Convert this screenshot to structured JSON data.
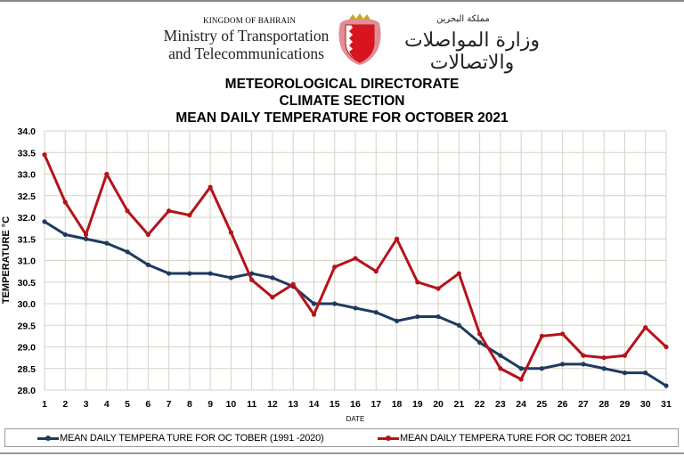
{
  "header": {
    "kingdom": "KINGDOM OF BAHRAIN",
    "ministry_line1": "Ministry of Transportation",
    "ministry_line2": "and Telecommunications",
    "arabic_kingdom": "مملكة البحرين",
    "arabic_ministry": "وزارة المواصلات والاتصالات",
    "emblem_icon": "bahrain-coat-of-arms"
  },
  "titles": [
    "METEOROLOGICAL DIRECTORATE",
    "CLIMATE SECTION",
    "MEAN DAILY TEMPERATURE  FOR OCTOBER 2021"
  ],
  "chart_data": {
    "type": "line",
    "title": "MEAN DAILY TEMPERATURE  FOR OCTOBER 2021",
    "xlabel": "DATE",
    "ylabel": "TEMPERATURE °C",
    "ylim": [
      28.0,
      34.0
    ],
    "ytick_step": 0.5,
    "grid": true,
    "legend_position": "bottom",
    "x": [
      1,
      2,
      3,
      4,
      5,
      6,
      7,
      8,
      9,
      10,
      11,
      12,
      13,
      14,
      15,
      16,
      17,
      18,
      19,
      20,
      21,
      22,
      23,
      24,
      25,
      26,
      27,
      28,
      29,
      30,
      31
    ],
    "series": [
      {
        "name": "MEAN DAILY TEMPERA TURE FOR OC TOBER (1991 -2020)",
        "color": "#1f3a5f",
        "values": [
          31.9,
          31.6,
          31.5,
          31.4,
          31.2,
          30.9,
          30.7,
          30.7,
          30.7,
          30.6,
          30.7,
          30.6,
          30.4,
          30.0,
          30.0,
          29.9,
          29.8,
          29.6,
          29.7,
          29.7,
          29.5,
          29.1,
          28.8,
          28.5,
          28.5,
          28.6,
          28.6,
          28.5,
          28.4,
          28.4,
          28.1
        ]
      },
      {
        "name": "MEAN DAILY TEMPERA TURE FOR OC TOBER 2021",
        "color": "#b5121b",
        "values": [
          33.45,
          32.35,
          31.6,
          33.0,
          32.15,
          31.6,
          32.15,
          32.05,
          32.7,
          31.65,
          30.55,
          30.15,
          30.45,
          29.75,
          30.85,
          31.05,
          30.75,
          31.5,
          30.5,
          30.35,
          30.7,
          29.3,
          28.5,
          28.25,
          29.25,
          29.3,
          28.8,
          28.75,
          28.8,
          29.45,
          29.0
        ]
      }
    ]
  }
}
